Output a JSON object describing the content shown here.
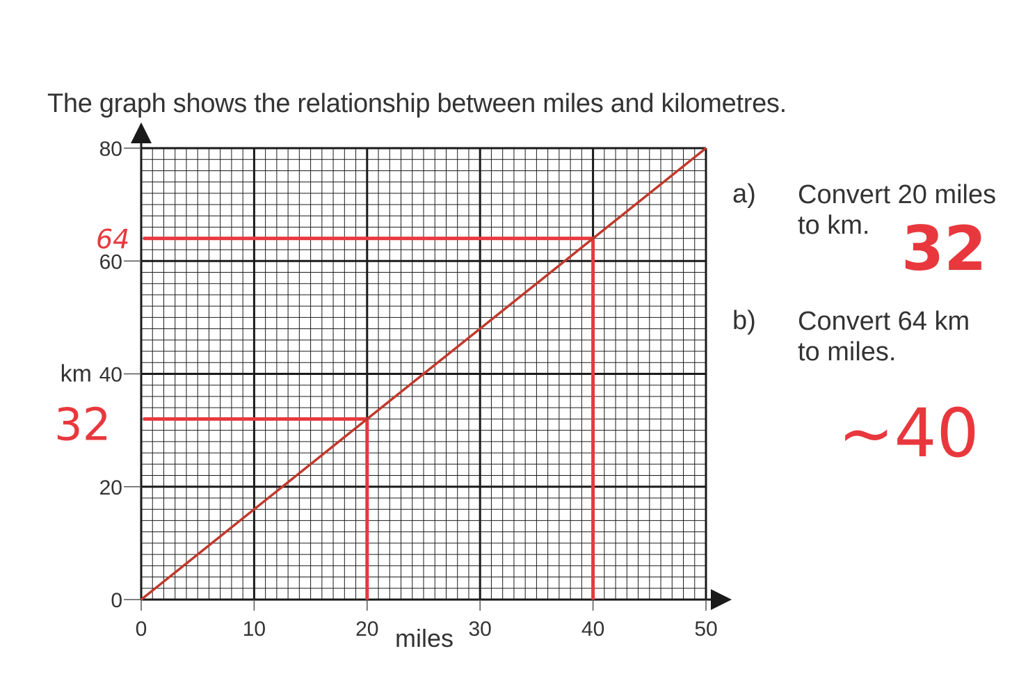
{
  "intro": "The graph shows the relationship between miles and kilometres.",
  "questions": [
    {
      "label": "a)",
      "line1": "Convert 20 miles",
      "line2": "to km."
    },
    {
      "label": "b)",
      "line1": "Convert 64 km",
      "line2": "to miles."
    }
  ],
  "handwritten": {
    "answer_a": "32",
    "answer_b": "~40",
    "axis_mark_64": "64",
    "axis_mark_32": "32"
  },
  "colors": {
    "grid": "#1a1a1a",
    "line": "#c0392b",
    "annotation": "#e8383d",
    "text": "#333333"
  },
  "chart_data": {
    "type": "line",
    "title": "",
    "xlabel": "miles",
    "ylabel": "km",
    "xlim": [
      0,
      50
    ],
    "ylim": [
      0,
      80
    ],
    "x_ticks": [
      0,
      10,
      20,
      30,
      40,
      50
    ],
    "y_ticks": [
      0,
      20,
      40,
      60,
      80
    ],
    "x_minor_step": 1,
    "y_minor_step": 2,
    "grid": true,
    "series": [
      {
        "x": [
          0,
          50
        ],
        "y": [
          0,
          80
        ]
      }
    ],
    "annotations": [
      {
        "type": "guide",
        "x": 20,
        "y": 32
      },
      {
        "type": "guide",
        "x": 40,
        "y": 64
      }
    ]
  }
}
